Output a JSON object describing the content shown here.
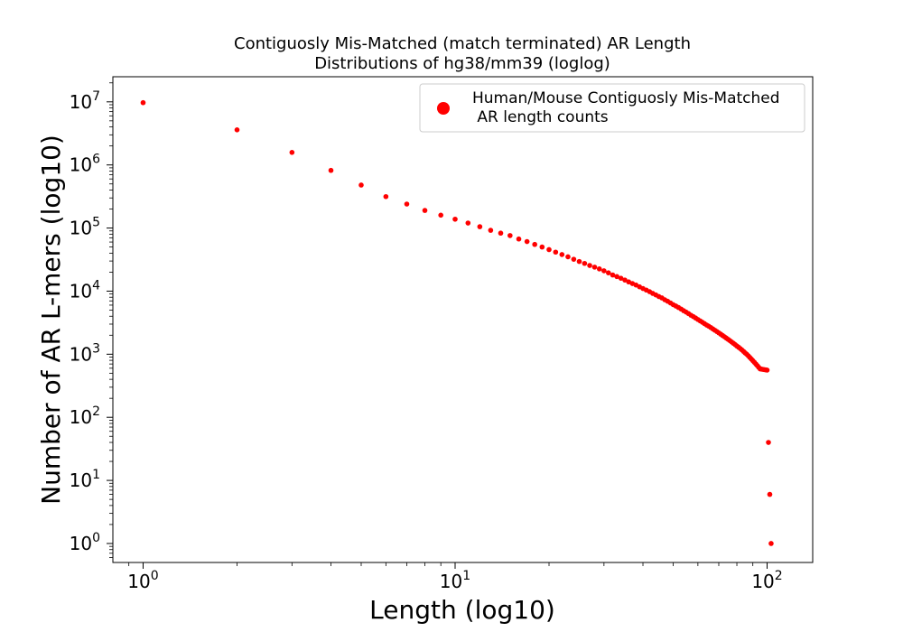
{
  "chart_data": {
    "type": "scatter",
    "title_lines": [
      "Contiguosly Mis-Matched (match terminated) AR Length",
      "Distributions of hg38/mm39 (loglog)"
    ],
    "xlabel": "Length (log10)",
    "ylabel": "Number of AR L-mers (log10)",
    "xscale": "log",
    "yscale": "log",
    "xlim": [
      0.8,
      140
    ],
    "ylim": [
      0.5,
      25000000
    ],
    "x_ticks": [
      {
        "value": 1,
        "base": "10",
        "exp": "0"
      },
      {
        "value": 10,
        "base": "10",
        "exp": "1"
      },
      {
        "value": 100,
        "base": "10",
        "exp": "2"
      }
    ],
    "y_ticks": [
      {
        "value": 1,
        "base": "10",
        "exp": "0"
      },
      {
        "value": 10,
        "base": "10",
        "exp": "1"
      },
      {
        "value": 100,
        "base": "10",
        "exp": "2"
      },
      {
        "value": 1000,
        "base": "10",
        "exp": "3"
      },
      {
        "value": 10000,
        "base": "10",
        "exp": "4"
      },
      {
        "value": 100000,
        "base": "10",
        "exp": "5"
      },
      {
        "value": 1000000,
        "base": "10",
        "exp": "6"
      },
      {
        "value": 10000000,
        "base": "10",
        "exp": "7"
      }
    ],
    "grid": false,
    "legend_position": "top-right",
    "marker_color": "#ff0000",
    "series": [
      {
        "name_lines": [
          "Human/Mouse Contiguosly Mis-Matched",
          " AR length counts"
        ],
        "color": "#ff0000",
        "x": [
          1,
          2,
          3,
          4,
          5,
          6,
          7,
          8,
          9,
          10,
          11,
          12,
          13,
          14,
          15,
          16,
          17,
          18,
          19,
          20,
          21,
          22,
          23,
          24,
          25,
          26,
          27,
          28,
          29,
          30,
          31,
          32,
          33,
          34,
          35,
          36,
          37,
          38,
          39,
          40,
          41,
          42,
          43,
          44,
          45,
          46,
          47,
          48,
          49,
          50,
          51,
          52,
          53,
          54,
          55,
          56,
          57,
          58,
          59,
          60,
          61,
          62,
          63,
          64,
          65,
          66,
          67,
          68,
          69,
          70,
          71,
          72,
          73,
          74,
          75,
          76,
          77,
          78,
          79,
          80,
          81,
          82,
          83,
          84,
          85,
          86,
          87,
          88,
          89,
          90,
          91,
          92,
          93,
          94,
          95,
          96,
          97,
          98,
          99,
          100,
          101,
          102,
          103
        ],
        "y": [
          9700000,
          3600000,
          1580000,
          820000,
          480000,
          315000,
          240000,
          190000,
          160000,
          138000,
          120000,
          105000,
          92000,
          83000,
          76000,
          67000,
          61000,
          55000,
          50000,
          45500,
          41500,
          38000,
          35000,
          32000,
          29500,
          27500,
          25500,
          24000,
          22500,
          21000,
          19500,
          18000,
          17000,
          16000,
          15000,
          14000,
          13200,
          12500,
          11700,
          11000,
          10400,
          9800,
          9200,
          8700,
          8200,
          7800,
          7300,
          6900,
          6500,
          6100,
          5800,
          5500,
          5200,
          4900,
          4650,
          4400,
          4150,
          3950,
          3750,
          3550,
          3380,
          3210,
          3050,
          2900,
          2780,
          2650,
          2520,
          2400,
          2290,
          2180,
          2080,
          1980,
          1890,
          1800,
          1720,
          1640,
          1560,
          1490,
          1420,
          1350,
          1290,
          1230,
          1170,
          1110,
          1050,
          1000,
          945,
          890,
          840,
          790,
          745,
          700,
          660,
          620,
          585,
          580,
          575,
          570,
          565,
          560,
          40,
          6,
          1
        ]
      }
    ]
  }
}
